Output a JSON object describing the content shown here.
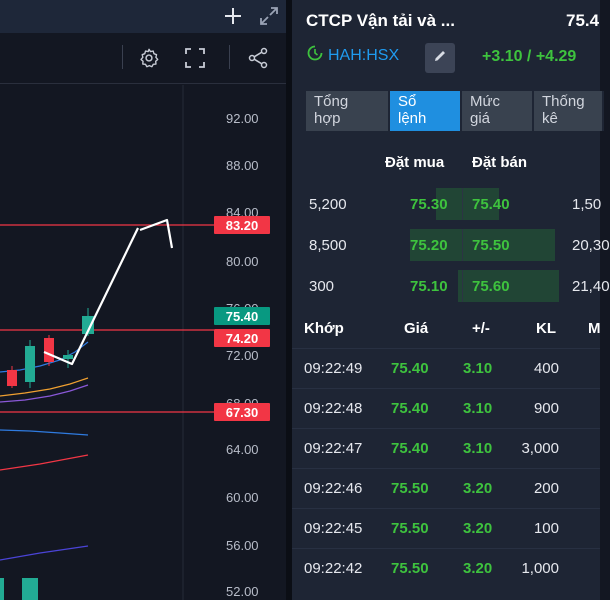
{
  "chart": {
    "axis_ticks": [
      "92.00",
      "88.00",
      "84.00",
      "80.00",
      "76.00",
      "72.00",
      "68.00",
      "64.00",
      "60.00",
      "56.00",
      "52.00"
    ],
    "price_tags": [
      {
        "label": "83.20",
        "color": "#f23645"
      },
      {
        "label": "75.40",
        "color": "#089981"
      },
      {
        "label": "74.20",
        "color": "#f23645"
      },
      {
        "label": "67.30",
        "color": "#f23645"
      }
    ],
    "icons": [
      "plus-icon",
      "expand-icon",
      "gear-icon",
      "fullscreen-icon",
      "share-icon"
    ]
  },
  "quote": {
    "company": "CTCP Vận tải và ...",
    "last_price": "75.4",
    "symbol": "HAH:HSX",
    "change": "+3.10 / +4.29",
    "colors": {
      "up": "#3ec33e",
      "accent": "#1f8fe0"
    },
    "tabs": [
      {
        "line1": "Tổng",
        "line2": "hợp",
        "active": false
      },
      {
        "line1": "Sổ",
        "line2": "lệnh",
        "active": true
      },
      {
        "line1": "Mức",
        "line2": "giá",
        "active": false
      },
      {
        "line1": "Thống",
        "line2": "kê",
        "active": false
      }
    ],
    "orderbook": {
      "head_bid": "Đặt mua",
      "head_ask": "Đặt bán",
      "rows": [
        {
          "bid_vol": "5,200",
          "bid": "75.30",
          "ask": "75.40",
          "ask_vol": "1,50"
        },
        {
          "bid_vol": "8,500",
          "bid": "75.20",
          "ask": "75.50",
          "ask_vol": "20,30"
        },
        {
          "bid_vol": "300",
          "bid": "75.10",
          "ask": "75.60",
          "ask_vol": "21,40"
        }
      ]
    },
    "trades": {
      "headers": {
        "time": "Khớp",
        "price": "Giá",
        "change": "+/-",
        "volume": "KL",
        "extra": "M"
      },
      "rows": [
        {
          "time": "09:22:49",
          "price": "75.40",
          "change": "3.10",
          "volume": "400"
        },
        {
          "time": "09:22:48",
          "price": "75.40",
          "change": "3.10",
          "volume": "900"
        },
        {
          "time": "09:22:47",
          "price": "75.40",
          "change": "3.10",
          "volume": "3,000"
        },
        {
          "time": "09:22:46",
          "price": "75.50",
          "change": "3.20",
          "volume": "200"
        },
        {
          "time": "09:22:45",
          "price": "75.50",
          "change": "3.20",
          "volume": "100"
        },
        {
          "time": "09:22:42",
          "price": "75.50",
          "change": "3.20",
          "volume": "1,000"
        }
      ]
    }
  }
}
